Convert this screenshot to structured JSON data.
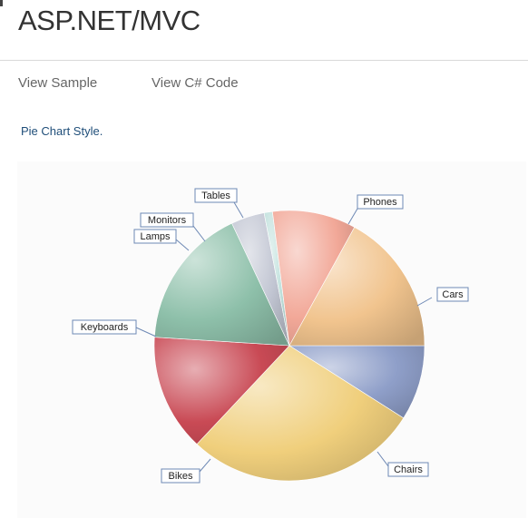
{
  "header": {
    "title": "ASP.NET/MVC"
  },
  "tabs": [
    {
      "label": "View Sample"
    },
    {
      "label": "View C# Code"
    }
  ],
  "description": "Pie Chart Style.",
  "chart_data": {
    "type": "pie",
    "categories": [
      "Cars",
      "Chairs",
      "Bikes",
      "Keyboards",
      "Lamps",
      "Monitors",
      "Tables",
      "Phones"
    ],
    "values": [
      9,
      28,
      14,
      17,
      4,
      1,
      10,
      17
    ],
    "colors": [
      "#8f9fc9",
      "#f0cf7c",
      "#c94a55",
      "#8ec0aa",
      "#c1c5d2",
      "#bfe0dc",
      "#f2a898",
      "#f1c48e"
    ],
    "start_angle_deg": 0,
    "direction": "clockwise",
    "legend": "none"
  }
}
